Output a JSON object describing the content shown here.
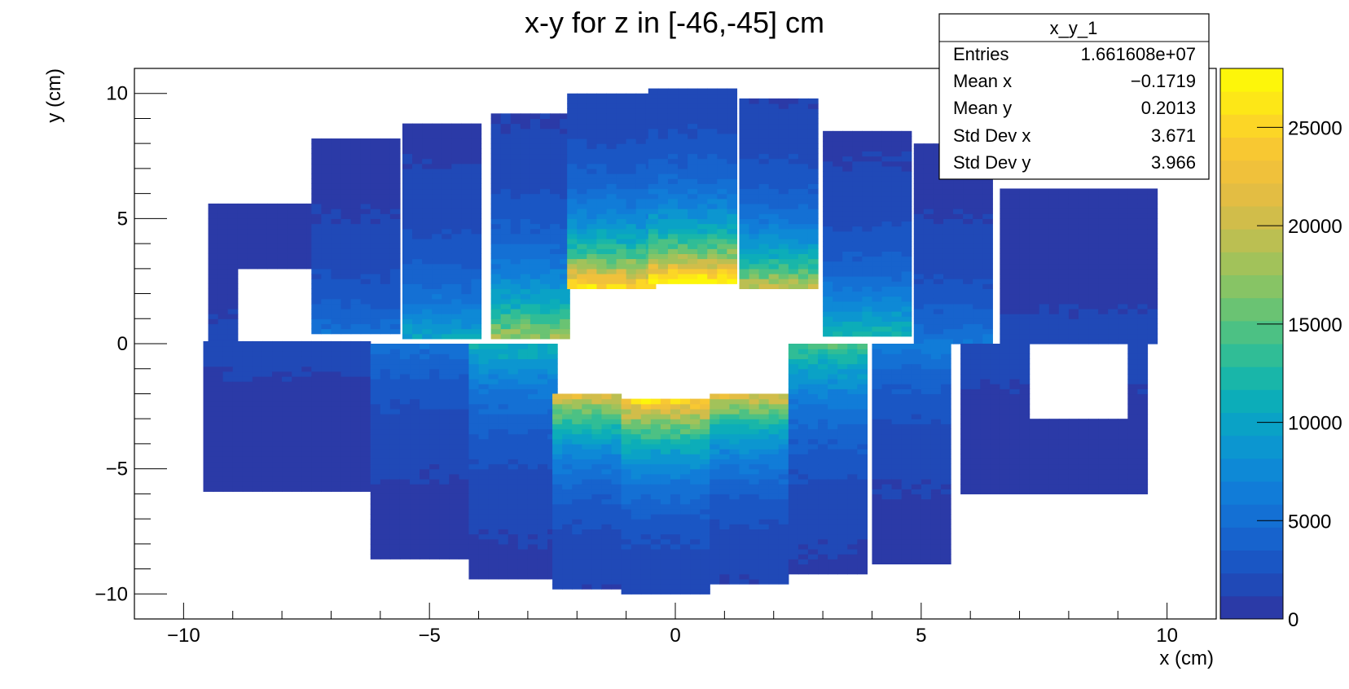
{
  "chart_data": {
    "type": "heatmap",
    "title": "x-y for z in [-46,-45] cm",
    "xlabel": "x (cm)",
    "ylabel": "y (cm)",
    "xlim": [
      -11,
      11
    ],
    "ylim": [
      -11,
      11
    ],
    "zlim": [
      0,
      28000
    ],
    "x_ticks": [
      -10,
      -5,
      0,
      5,
      10
    ],
    "y_ticks": [
      -10,
      -5,
      0,
      5,
      10
    ],
    "x_tick_labels": [
      "−10",
      "−5",
      "0",
      "5",
      "10"
    ],
    "y_tick_labels": [
      "−10",
      "−5",
      "0",
      "5",
      "10"
    ],
    "z_ticks": [
      0,
      5000,
      10000,
      15000,
      20000,
      25000
    ],
    "z_tick_labels": [
      "0",
      "5000",
      "10000",
      "15000",
      "20000",
      "25000"
    ],
    "colorbar_colors": [
      "#2b3aa7",
      "#2049b7",
      "#1a56c4",
      "#1763cd",
      "#1470d4",
      "#117cd8",
      "#0e89d6",
      "#0c96d0",
      "#0aa2c6",
      "#0cadb9",
      "#19b6a9",
      "#30bd96",
      "#4cc184",
      "#6ac373",
      "#87c465",
      "#a2c25a",
      "#bbbf52",
      "#d1bd4a",
      "#e3bd43",
      "#f0c13b",
      "#f8c832",
      "#fcd626",
      "#fde717",
      "#fdf60a"
    ],
    "stats_box": {
      "name": "x_y_1",
      "rows": [
        {
          "label": "Entries",
          "value": "1.661608e+07"
        },
        {
          "label": "Mean x",
          "value": "−0.1719"
        },
        {
          "label": "Mean y",
          "value": "0.2013"
        },
        {
          "label": "Std Dev x",
          "value": "3.671"
        },
        {
          "label": "Std Dev y",
          "value": "3.966"
        }
      ]
    },
    "upper_modules": [
      {
        "x": [
          -9.5,
          -7.4
        ],
        "y": [
          0.0,
          5.5
        ],
        "peak": 1200,
        "holes": [
          [
            -8.9,
            -7.4,
            0.0,
            3.0
          ]
        ]
      },
      {
        "x": [
          -7.4,
          -5.75
        ],
        "y": [
          0.4,
          8.2
        ],
        "peak": 5000
      },
      {
        "x": [
          -5.55,
          -3.95
        ],
        "y": [
          0.2,
          8.8
        ],
        "peak": 10000
      },
      {
        "x": [
          -3.75,
          -2.2
        ],
        "y": [
          0.2,
          9.1
        ],
        "peak": 18000
      },
      {
        "x": [
          -2.2,
          -0.55
        ],
        "y": [
          2.2,
          10.0
        ],
        "peak": 26000
      },
      {
        "x": [
          -0.55,
          1.1
        ],
        "y": [
          2.4,
          10.2
        ],
        "peak": 28000
      },
      {
        "x": [
          1.3,
          2.8
        ],
        "y": [
          2.2,
          9.7
        ],
        "peak": 20000
      },
      {
        "x": [
          3.0,
          4.7
        ],
        "y": [
          0.3,
          8.4
        ],
        "peak": 12000
      },
      {
        "x": [
          4.85,
          6.4
        ],
        "y": [
          0.0,
          8.0
        ],
        "peak": 5500
      },
      {
        "x": [
          6.6,
          9.7
        ],
        "y": [
          0.0,
          6.2
        ],
        "peak": 1200
      }
    ],
    "lower_modules": [
      {
        "x": [
          -9.6,
          -6.2
        ],
        "y": [
          -5.9,
          0.0
        ],
        "peak": 1200
      },
      {
        "x": [
          -6.2,
          -4.2
        ],
        "y": [
          -8.6,
          0.0
        ],
        "peak": 5000
      },
      {
        "x": [
          -4.2,
          -2.5
        ],
        "y": [
          -9.4,
          0.0
        ],
        "peak": 11000
      },
      {
        "x": [
          -2.5,
          -1.2
        ],
        "y": [
          -9.8,
          -2.1
        ],
        "peak": 20000
      },
      {
        "x": [
          -1.1,
          0.7
        ],
        "y": [
          -10.0,
          -2.3
        ],
        "peak": 24000
      },
      {
        "x": [
          0.7,
          2.3
        ],
        "y": [
          -9.6,
          -2.1
        ],
        "peak": 20000
      },
      {
        "x": [
          2.3,
          3.9
        ],
        "y": [
          -9.2,
          0.0
        ],
        "peak": 14000
      },
      {
        "x": [
          4.0,
          5.6
        ],
        "y": [
          -8.8,
          0.0
        ],
        "peak": 6000
      },
      {
        "x": [
          5.8,
          9.6
        ],
        "y": [
          -6.0,
          0.0
        ],
        "peak": 1500,
        "holes": [
          [
            7.3,
            9.1,
            -3.0,
            0.0
          ]
        ]
      }
    ]
  }
}
